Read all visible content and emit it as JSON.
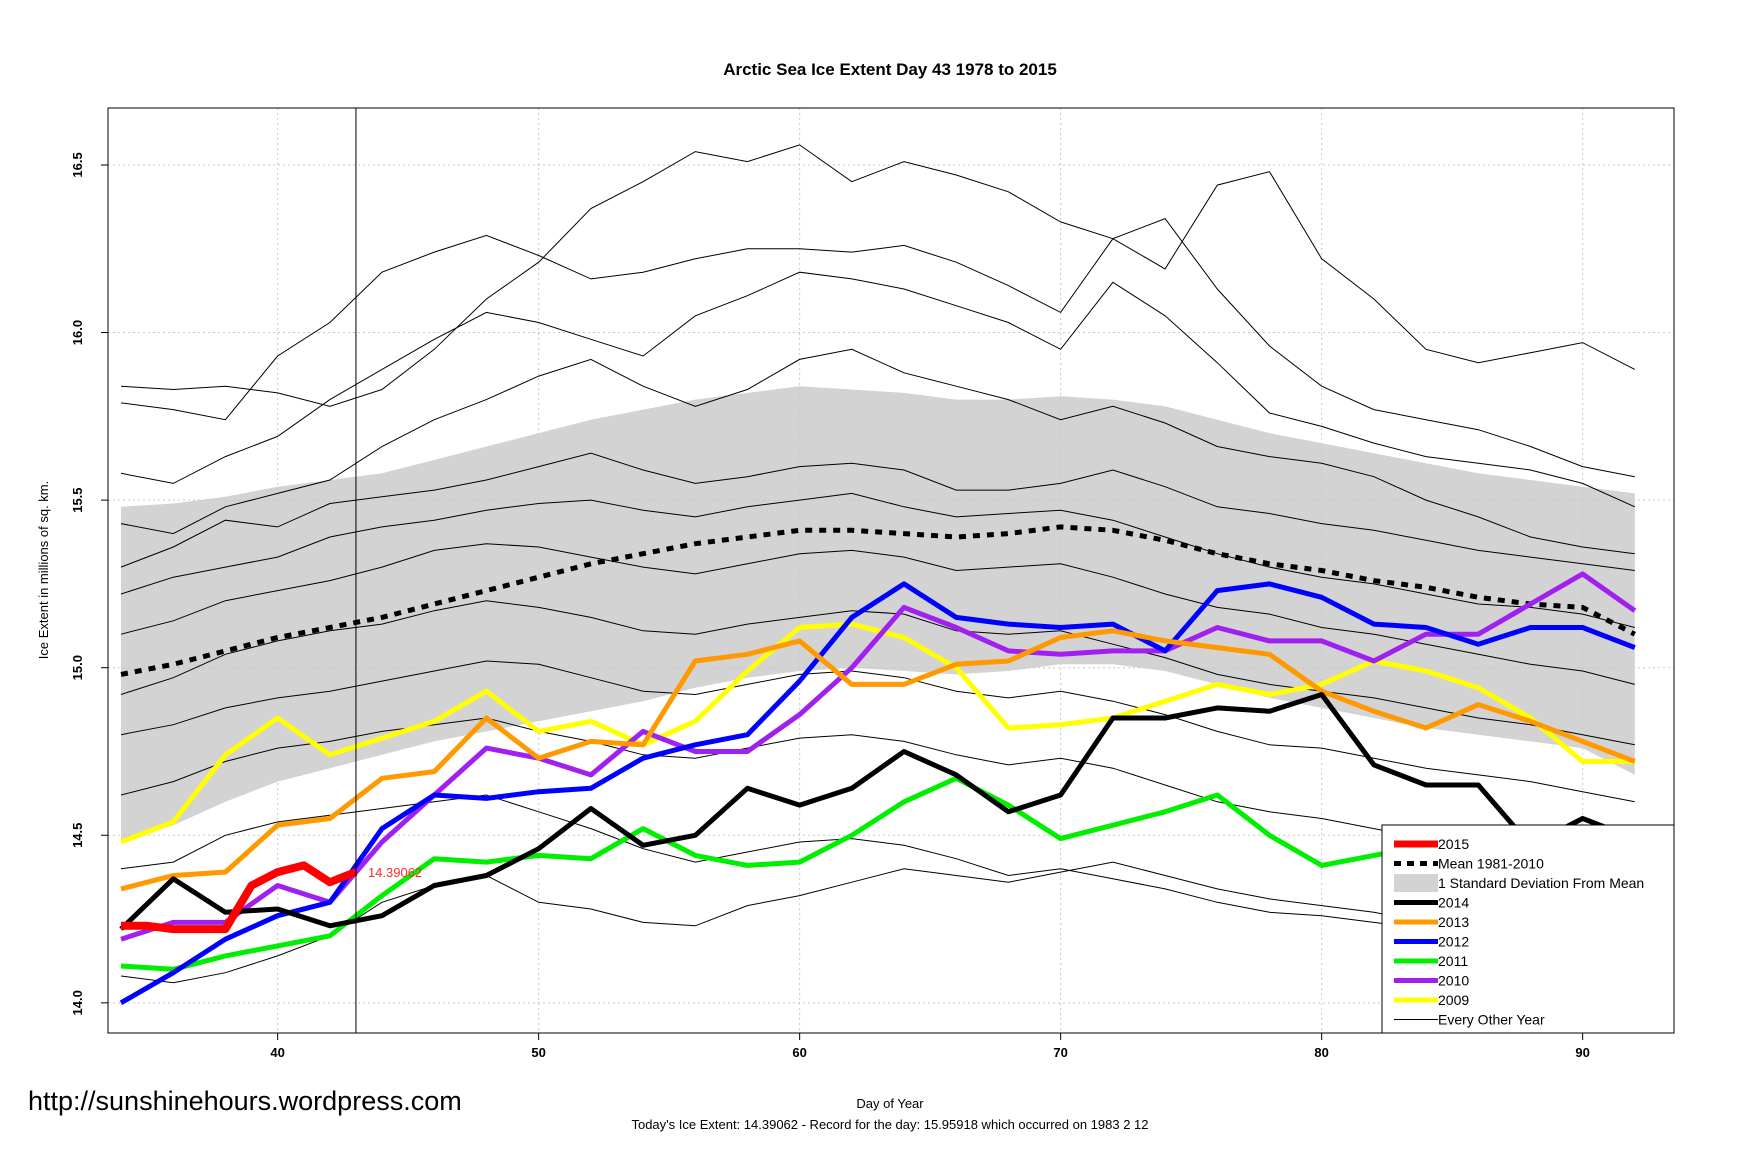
{
  "chart_data": {
    "type": "line",
    "title": "Arctic Sea Ice Extent Day 43 1978 to 2015",
    "xlabel": "Day of Year",
    "ylabel": "Ice Extent in millions of sq. km.",
    "xlim": [
      33.5,
      93.5
    ],
    "ylim": [
      13.91,
      16.67
    ],
    "x_ticks": [
      40,
      50,
      60,
      70,
      80,
      90
    ],
    "x_tick_labels": [
      "40",
      "50",
      "60",
      "70",
      "80",
      "90"
    ],
    "y_ticks": [
      14.0,
      14.5,
      15.0,
      15.5,
      16.0,
      16.5
    ],
    "y_tick_labels": [
      "14.0",
      "14.5",
      "15.0",
      "15.5",
      "16.0",
      "16.5"
    ],
    "grid": true,
    "vertical_marker_day": 43,
    "annotation": {
      "text": "14.39062",
      "x": 43,
      "y": 14.39062,
      "color": "#ff2a2a"
    },
    "footer_note": "Today's Ice Extent: 14.39062  - Record for the day: 15.95918 which occurred on 1983 2 12",
    "watermark": "http://sunshinehours.wordpress.com",
    "legend": {
      "position": "bottom-right",
      "entries": [
        {
          "label": "2015",
          "color": "#ff0000",
          "style": "thick"
        },
        {
          "label": "Mean 1981-2010",
          "color": "#000000",
          "style": "dashed"
        },
        {
          "label": "1 Standard Deviation From Mean",
          "color": "#d3d3d3",
          "style": "box"
        },
        {
          "label": "2014",
          "color": "#000000",
          "style": "thick"
        },
        {
          "label": "2013",
          "color": "#ff9900",
          "style": "thick"
        },
        {
          "label": "2012",
          "color": "#0000ff",
          "style": "thick"
        },
        {
          "label": "2011",
          "color": "#00ee00",
          "style": "thick"
        },
        {
          "label": "2010",
          "color": "#a020f0",
          "style": "thick"
        },
        {
          "label": "2009",
          "color": "#ffff00",
          "style": "thick"
        },
        {
          "label": "Every Other Year",
          "color": "#000000",
          "style": "thin"
        }
      ]
    },
    "x": [
      34,
      36,
      38,
      40,
      42,
      44,
      46,
      48,
      50,
      52,
      54,
      56,
      58,
      60,
      62,
      64,
      66,
      68,
      70,
      72,
      74,
      76,
      78,
      80,
      82,
      84,
      86,
      88,
      90,
      92
    ],
    "mean": [
      14.98,
      15.01,
      15.05,
      15.09,
      15.12,
      15.15,
      15.19,
      15.23,
      15.27,
      15.31,
      15.34,
      15.37,
      15.39,
      15.41,
      15.41,
      15.4,
      15.39,
      15.4,
      15.42,
      15.41,
      15.38,
      15.34,
      15.31,
      15.29,
      15.26,
      15.24,
      15.21,
      15.19,
      15.18,
      15.1
    ],
    "std_band": {
      "upper": [
        15.48,
        15.49,
        15.51,
        15.54,
        15.56,
        15.58,
        15.62,
        15.66,
        15.7,
        15.74,
        15.77,
        15.8,
        15.82,
        15.84,
        15.83,
        15.82,
        15.8,
        15.8,
        15.81,
        15.8,
        15.78,
        15.74,
        15.7,
        15.67,
        15.64,
        15.61,
        15.58,
        15.56,
        15.54,
        15.52
      ],
      "lower": [
        14.48,
        14.53,
        14.6,
        14.66,
        14.7,
        14.74,
        14.78,
        14.81,
        14.84,
        14.87,
        14.9,
        14.94,
        14.97,
        14.99,
        15.0,
        14.99,
        14.98,
        14.99,
        15.01,
        15.01,
        14.99,
        14.95,
        14.91,
        14.88,
        14.85,
        14.82,
        14.8,
        14.78,
        14.76,
        14.68
      ]
    },
    "series": [
      {
        "name": "2015",
        "color": "#ff0000",
        "x": [
          34,
          35,
          36,
          37,
          38,
          39,
          40,
          41,
          42,
          43
        ],
        "values": [
          14.23,
          14.23,
          14.22,
          14.22,
          14.22,
          14.35,
          14.39,
          14.41,
          14.36,
          14.39062
        ]
      },
      {
        "name": "2014",
        "color": "#000000",
        "values": [
          14.22,
          14.37,
          14.27,
          14.28,
          14.23,
          14.26,
          14.35,
          14.38,
          14.46,
          14.58,
          14.47,
          14.5,
          14.64,
          14.59,
          14.64,
          14.75,
          14.68,
          14.57,
          14.62,
          14.85,
          14.85,
          14.88,
          14.87,
          14.92,
          14.71,
          14.65,
          14.65,
          14.47,
          14.55,
          14.49
        ]
      },
      {
        "name": "2013",
        "color": "#ff9900",
        "values": [
          14.34,
          14.38,
          14.39,
          14.53,
          14.55,
          14.67,
          14.69,
          14.85,
          14.73,
          14.78,
          14.77,
          15.02,
          15.04,
          15.08,
          14.95,
          14.95,
          15.01,
          15.02,
          15.09,
          15.11,
          15.08,
          15.06,
          15.04,
          14.93,
          14.87,
          14.82,
          14.89,
          14.84,
          14.78,
          14.72
        ]
      },
      {
        "name": "2012",
        "color": "#0000ff",
        "values": [
          14.0,
          14.09,
          14.19,
          14.26,
          14.3,
          14.52,
          14.62,
          14.61,
          14.63,
          14.64,
          14.73,
          14.77,
          14.8,
          14.96,
          15.15,
          15.25,
          15.15,
          15.13,
          15.12,
          15.13,
          15.05,
          15.23,
          15.25,
          15.21,
          15.13,
          15.12,
          15.07,
          15.12,
          15.12,
          15.06
        ]
      },
      {
        "name": "2011",
        "color": "#00ee00",
        "values": [
          14.11,
          14.1,
          14.14,
          14.17,
          14.2,
          14.32,
          14.43,
          14.42,
          14.44,
          14.43,
          14.52,
          14.44,
          14.41,
          14.42,
          14.5,
          14.6,
          14.67,
          14.59,
          14.49,
          14.53,
          14.57,
          14.62,
          14.5,
          14.41,
          14.44,
          14.47,
          14.45,
          14.4,
          14.5,
          14.51
        ]
      },
      {
        "name": "2010",
        "color": "#a020f0",
        "values": [
          14.19,
          14.24,
          14.24,
          14.35,
          14.3,
          14.48,
          14.62,
          14.76,
          14.73,
          14.68,
          14.81,
          14.75,
          14.75,
          14.86,
          15.0,
          15.18,
          15.12,
          15.05,
          15.04,
          15.05,
          15.05,
          15.12,
          15.08,
          15.08,
          15.02,
          15.1,
          15.1,
          15.19,
          15.28,
          15.17
        ]
      },
      {
        "name": "2009",
        "color": "#ffff00",
        "values": [
          14.48,
          14.54,
          14.74,
          14.85,
          14.74,
          14.79,
          14.84,
          14.93,
          14.81,
          14.84,
          14.77,
          14.84,
          14.99,
          15.12,
          15.13,
          15.09,
          15.0,
          14.82,
          14.83,
          14.85,
          14.9,
          14.95,
          14.92,
          14.95,
          15.02,
          14.99,
          14.94,
          14.85,
          14.72,
          14.72
        ]
      }
    ],
    "other_years": [
      [
        15.84,
        15.83,
        15.84,
        15.82,
        15.78,
        15.83,
        15.95,
        16.1,
        16.21,
        16.37,
        16.45,
        16.54,
        16.51,
        16.56,
        16.45,
        16.51,
        16.47,
        16.42,
        16.33,
        16.28,
        16.19,
        16.44,
        16.48,
        16.22,
        16.1,
        15.95,
        15.91,
        15.94,
        15.97,
        15.89
      ],
      [
        15.79,
        15.77,
        15.74,
        15.93,
        16.03,
        16.18,
        16.24,
        16.29,
        16.23,
        16.16,
        16.18,
        16.22,
        16.25,
        16.25,
        16.24,
        16.26,
        16.21,
        16.14,
        16.06,
        16.28,
        16.34,
        16.13,
        15.96,
        15.84,
        15.77,
        15.74,
        15.71,
        15.66,
        15.6,
        15.57
      ],
      [
        15.58,
        15.55,
        15.63,
        15.69,
        15.8,
        15.89,
        15.98,
        16.06,
        16.03,
        15.98,
        15.93,
        16.05,
        16.11,
        16.18,
        16.16,
        16.13,
        16.08,
        16.03,
        15.95,
        16.15,
        16.05,
        15.91,
        15.76,
        15.72,
        15.67,
        15.63,
        15.61,
        15.59,
        15.55,
        15.48
      ],
      [
        15.43,
        15.4,
        15.48,
        15.52,
        15.56,
        15.66,
        15.74,
        15.8,
        15.87,
        15.92,
        15.84,
        15.78,
        15.83,
        15.92,
        15.95,
        15.88,
        15.84,
        15.8,
        15.74,
        15.78,
        15.73,
        15.66,
        15.63,
        15.61,
        15.57,
        15.5,
        15.45,
        15.39,
        15.36,
        15.34
      ],
      [
        15.3,
        15.36,
        15.44,
        15.42,
        15.49,
        15.51,
        15.53,
        15.56,
        15.6,
        15.64,
        15.59,
        15.55,
        15.57,
        15.6,
        15.61,
        15.59,
        15.53,
        15.53,
        15.55,
        15.59,
        15.54,
        15.48,
        15.46,
        15.43,
        15.41,
        15.38,
        15.35,
        15.33,
        15.31,
        15.29
      ],
      [
        15.22,
        15.27,
        15.3,
        15.33,
        15.39,
        15.42,
        15.44,
        15.47,
        15.49,
        15.5,
        15.47,
        15.45,
        15.48,
        15.5,
        15.52,
        15.48,
        15.45,
        15.46,
        15.47,
        15.44,
        15.39,
        15.34,
        15.3,
        15.27,
        15.25,
        15.22,
        15.19,
        15.18,
        15.16,
        15.12
      ],
      [
        15.1,
        15.14,
        15.2,
        15.23,
        15.26,
        15.3,
        15.35,
        15.37,
        15.36,
        15.33,
        15.3,
        15.28,
        15.31,
        15.34,
        15.35,
        15.33,
        15.29,
        15.3,
        15.31,
        15.27,
        15.22,
        15.18,
        15.16,
        15.12,
        15.1,
        15.07,
        15.04,
        15.01,
        14.99,
        14.95
      ],
      [
        14.92,
        14.97,
        15.04,
        15.08,
        15.11,
        15.13,
        15.17,
        15.2,
        15.18,
        15.15,
        15.11,
        15.1,
        15.13,
        15.15,
        15.17,
        15.16,
        15.11,
        15.1,
        15.11,
        15.07,
        15.03,
        14.98,
        14.95,
        14.93,
        14.91,
        14.88,
        14.85,
        14.83,
        14.8,
        14.77
      ],
      [
        14.8,
        14.83,
        14.88,
        14.91,
        14.93,
        14.96,
        14.99,
        15.02,
        15.01,
        14.97,
        14.93,
        14.92,
        14.95,
        14.98,
        14.99,
        14.97,
        14.93,
        14.91,
        14.93,
        14.9,
        14.86,
        14.81,
        14.77,
        14.76,
        14.73,
        14.7,
        14.68,
        14.66,
        14.63,
        14.6
      ],
      [
        14.62,
        14.66,
        14.72,
        14.76,
        14.78,
        14.81,
        14.83,
        14.85,
        14.81,
        14.78,
        14.74,
        14.73,
        14.76,
        14.79,
        14.8,
        14.78,
        14.74,
        14.71,
        14.73,
        14.7,
        14.65,
        14.6,
        14.57,
        14.55,
        14.52,
        14.49,
        14.46,
        14.44,
        14.41,
        14.38
      ],
      [
        14.4,
        14.42,
        14.5,
        14.54,
        14.56,
        14.58,
        14.6,
        14.62,
        14.57,
        14.52,
        14.46,
        14.42,
        14.45,
        14.48,
        14.49,
        14.47,
        14.43,
        14.38,
        14.4,
        14.37,
        14.34,
        14.3,
        14.27,
        14.26,
        14.24,
        14.22,
        14.21,
        14.2,
        14.21,
        14.23
      ],
      [
        14.08,
        14.06,
        14.09,
        14.14,
        14.2,
        14.3,
        14.35,
        14.38,
        14.3,
        14.28,
        14.24,
        14.23,
        14.29,
        14.32,
        14.36,
        14.4,
        14.38,
        14.36,
        14.39,
        14.42,
        14.38,
        14.34,
        14.31,
        14.29,
        14.27,
        14.24,
        14.2,
        14.18,
        14.17,
        14.25
      ]
    ]
  }
}
